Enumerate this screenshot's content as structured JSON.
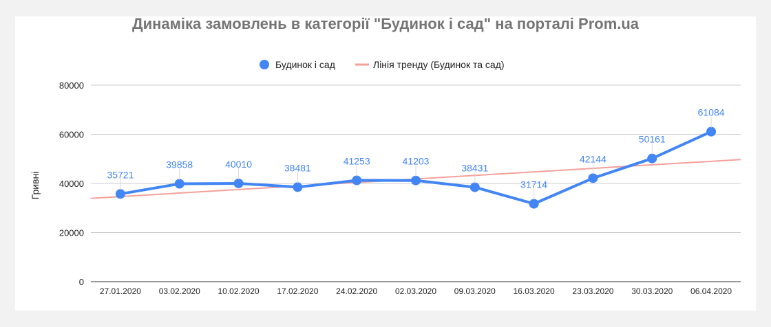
{
  "chart_data": {
    "type": "line",
    "title": "Динаміка замовлень в категорії \"Будинок і сад\" на порталі Prom.ua",
    "ylabel": "Гривні",
    "xlabel": "",
    "categories": [
      "27.01.2020",
      "03.02.2020",
      "10.02.2020",
      "17.02.2020",
      "24.02.2020",
      "02.03.2020",
      "09.03.2020",
      "16.03.2020",
      "23.03.2020",
      "30.03.2020",
      "06.04.2020"
    ],
    "series": [
      {
        "name": "Будинок і сад",
        "values": [
          35721,
          39858,
          40010,
          38481,
          41253,
          41203,
          38431,
          31714,
          42144,
          50161,
          61084
        ],
        "color": "#4285f4"
      }
    ],
    "trendline": {
      "name": "Лінія тренду (Будинок та сад)",
      "color": "#f4a09a"
    },
    "ylim": [
      0,
      80000
    ],
    "yticks": [
      0,
      20000,
      40000,
      60000,
      80000
    ],
    "grid": true,
    "legend_position": "top"
  }
}
